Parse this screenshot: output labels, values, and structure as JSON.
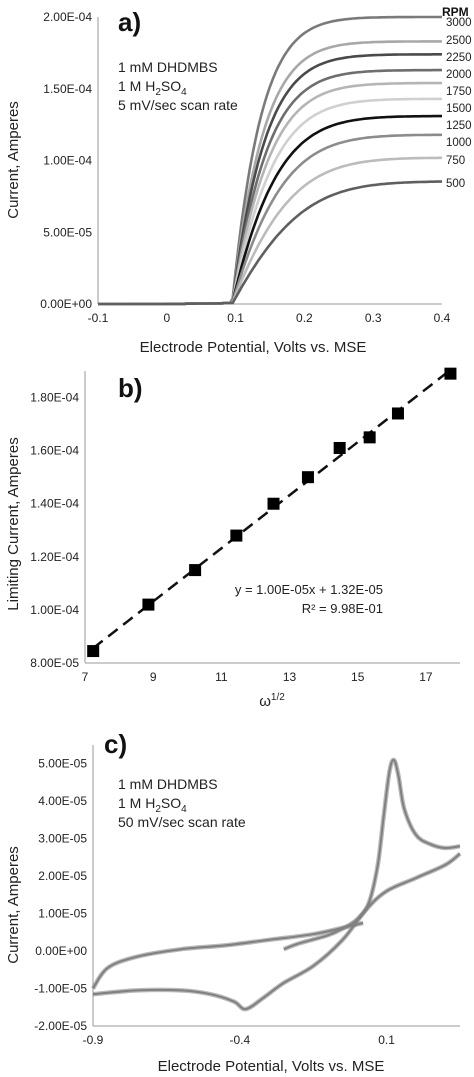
{
  "chart_data": [
    {
      "id": "a",
      "type": "line",
      "panel_label": "a)",
      "xlabel": "Electrode Potential, Volts vs. MSE",
      "ylabel": "Current, Amperes",
      "xlim": [
        -0.1,
        0.4
      ],
      "ylim": [
        0,
        0.0002
      ],
      "x_ticks": [
        "-0.1",
        "0",
        "0.1",
        "0.2",
        "0.3",
        "0.4"
      ],
      "x_tick_values": [
        -0.1,
        0,
        0.1,
        0.2,
        0.3,
        0.4
      ],
      "y_ticks": [
        "0.00E+00",
        "5.00E-05",
        "1.00E-04",
        "1.50E-04",
        "2.00E-04"
      ],
      "y_tick_values": [
        0,
        5e-05,
        0.0001,
        0.00015,
        0.0002
      ],
      "grid": false,
      "legend_title": "RPM",
      "annotations": [
        "1 mM DHDMBS",
        "1 M H",
        "2",
        "SO",
        "4",
        "5 mV/sec scan rate"
      ],
      "curve_model": {
        "onset_potential": 0.095,
        "transition_width": 0.2,
        "x_start": -0.1,
        "x_end": 0.4,
        "points": 120
      },
      "series": [
        {
          "name": "3000",
          "limiting_value": 0.0002,
          "color": "#7a7a7a"
        },
        {
          "name": "2500",
          "limiting_value": 0.000183,
          "color": "#a8a8a8"
        },
        {
          "name": "2250",
          "limiting_value": 0.000174,
          "color": "#4a4a4a"
        },
        {
          "name": "2000",
          "limiting_value": 0.000163,
          "color": "#6e6e6e"
        },
        {
          "name": "1750",
          "limiting_value": 0.000154,
          "color": "#b5b5b5"
        },
        {
          "name": "1500",
          "limiting_value": 0.000143,
          "color": "#d0d0d0"
        },
        {
          "name": "1250",
          "limiting_value": 0.000131,
          "color": "#111111"
        },
        {
          "name": "1000",
          "limiting_value": 0.000118,
          "color": "#8c8c8c"
        },
        {
          "name": "750",
          "limiting_value": 0.000102,
          "color": "#bcbcbc"
        },
        {
          "name": "500",
          "limiting_value": 8.55e-05,
          "color": "#5f5f5f"
        }
      ]
    },
    {
      "id": "b",
      "type": "scatter",
      "panel_label": "b)",
      "xlabel": "ω",
      "xlabel_superscript": "1/2",
      "ylabel": "Limiting Current, Amperes",
      "xlim": [
        7,
        18
      ],
      "ylim": [
        8e-05,
        0.00019
      ],
      "x_ticks": [
        "7",
        "9",
        "11",
        "13",
        "15",
        "17"
      ],
      "x_tick_values": [
        7,
        9,
        11,
        13,
        15,
        17
      ],
      "y_ticks": [
        "8.00E-05",
        "1.00E-04",
        "1.20E-04",
        "1.40E-04",
        "1.60E-04",
        "1.80E-04"
      ],
      "y_tick_values": [
        8e-05,
        0.0001,
        0.00012,
        0.00014,
        0.00016,
        0.00018
      ],
      "grid": false,
      "points": [
        {
          "x": 7.24,
          "y": 8.45e-05
        },
        {
          "x": 8.86,
          "y": 0.000102
        },
        {
          "x": 10.23,
          "y": 0.000115
        },
        {
          "x": 11.44,
          "y": 0.000128
        },
        {
          "x": 12.53,
          "y": 0.00014
        },
        {
          "x": 13.54,
          "y": 0.00015
        },
        {
          "x": 14.47,
          "y": 0.000161
        },
        {
          "x": 15.35,
          "y": 0.000165
        },
        {
          "x": 16.18,
          "y": 0.000174
        },
        {
          "x": 17.72,
          "y": 0.000189
        }
      ],
      "trendline": {
        "slope": 1e-05,
        "intercept": 1.32e-05,
        "style": "dashed"
      },
      "equation_text": "y = 1.00E-05x + 1.32E-05",
      "r2_text": "R² = 9.98E-01"
    },
    {
      "id": "c",
      "type": "line",
      "panel_label": "c)",
      "xlabel": "Electrode Potential, Volts vs. MSE",
      "ylabel": "Current, Amperes",
      "xlim": [
        -0.9,
        0.35
      ],
      "ylim": [
        -2e-05,
        5.5e-05
      ],
      "x_ticks": [
        "-0.9",
        "-0.4",
        "0.1"
      ],
      "x_tick_values": [
        -0.9,
        -0.4,
        0.1
      ],
      "y_ticks": [
        "-2.00E-05",
        "-1.00E-05",
        "0.00E+00",
        "1.00E-05",
        "2.00E-05",
        "3.00E-05",
        "4.00E-05",
        "5.00E-05"
      ],
      "y_tick_values": [
        -2e-05,
        -1e-05,
        0,
        1e-05,
        2e-05,
        3e-05,
        4e-05,
        5e-05
      ],
      "grid": false,
      "line_color": "#808080",
      "annotations": [
        "1 mM DHDMBS",
        "1 M H",
        "2",
        "SO",
        "4",
        "50 mV/sec scan rate"
      ],
      "forward_scan": [
        {
          "x": -0.25,
          "y": 5e-07
        },
        {
          "x": -0.2,
          "y": 2e-06
        },
        {
          "x": -0.1,
          "y": 4.2e-06
        },
        {
          "x": -0.05,
          "y": 6e-06
        },
        {
          "x": 0,
          "y": 8.5e-06
        },
        {
          "x": 0.04,
          "y": 1.3e-05
        },
        {
          "x": 0.07,
          "y": 2.3e-05
        },
        {
          "x": 0.09,
          "y": 3.6e-05
        },
        {
          "x": 0.11,
          "y": 4.8e-05
        },
        {
          "x": 0.125,
          "y": 5.1e-05
        },
        {
          "x": 0.14,
          "y": 4.7e-05
        },
        {
          "x": 0.16,
          "y": 3.8e-05
        },
        {
          "x": 0.2,
          "y": 3.1e-05
        },
        {
          "x": 0.25,
          "y": 2.85e-05
        },
        {
          "x": 0.3,
          "y": 2.75e-05
        },
        {
          "x": 0.35,
          "y": 2.8e-05
        }
      ],
      "reverse_scan": [
        {
          "x": 0.35,
          "y": 2.6e-05
        },
        {
          "x": 0.3,
          "y": 2.3e-05
        },
        {
          "x": 0.2,
          "y": 1.95e-05
        },
        {
          "x": 0.1,
          "y": 1.6e-05
        },
        {
          "x": 0.03,
          "y": 1.1e-05
        },
        {
          "x": -0.05,
          "y": 3e-06
        },
        {
          "x": -0.15,
          "y": -4e-06
        },
        {
          "x": -0.25,
          "y": -8.5e-06
        },
        {
          "x": -0.32,
          "y": -1.25e-05
        },
        {
          "x": -0.38,
          "y": -1.55e-05
        },
        {
          "x": -0.42,
          "y": -1.35e-05
        },
        {
          "x": -0.5,
          "y": -1.15e-05
        },
        {
          "x": -0.6,
          "y": -1.05e-05
        },
        {
          "x": -0.75,
          "y": -1.05e-05
        },
        {
          "x": -0.9,
          "y": -1.15e-05
        }
      ],
      "return_scan": [
        {
          "x": -0.9,
          "y": -1e-05
        },
        {
          "x": -0.85,
          "y": -4.5e-06
        },
        {
          "x": -0.75,
          "y": -1.5e-06
        },
        {
          "x": -0.6,
          "y": 5e-07
        },
        {
          "x": -0.45,
          "y": 1.5e-06
        },
        {
          "x": -0.3,
          "y": 3e-06
        },
        {
          "x": -0.15,
          "y": 4.5e-06
        },
        {
          "x": -0.05,
          "y": 6.2e-06
        },
        {
          "x": 0.02,
          "y": 7.5e-06
        }
      ]
    }
  ]
}
